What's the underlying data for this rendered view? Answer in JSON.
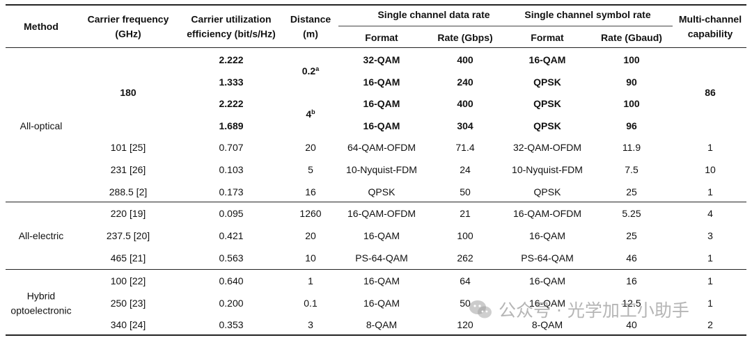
{
  "header": {
    "method": "Method",
    "carrier_freq": [
      "Carrier frequency",
      "(GHz)"
    ],
    "utilization": [
      "Carrier utilization",
      "efficiency (bit/s/Hz)"
    ],
    "distance": [
      "Distance",
      "(m)"
    ],
    "data_rate_group": "Single channel data rate",
    "symbol_rate_group": "Single channel symbol rate",
    "multichannel": [
      "Multi-channel",
      "capability"
    ],
    "format": "Format",
    "rate_gbps": "Rate (Gbps)",
    "rate_gbaud": "Rate (Gbaud)"
  },
  "groups": {
    "optical": "All-optical",
    "electric": "All-electric",
    "hybrid": [
      "Hybrid",
      "optoelectronic"
    ]
  },
  "optical_bold": {
    "freq": "180",
    "dist_a": "0.2",
    "dist_a_sup": "a",
    "dist_b": "4",
    "dist_b_sup": "b",
    "multichannel": "86",
    "rows": [
      {
        "eff": "2.222",
        "dfmt": "32-QAM",
        "drate": "400",
        "sfmt": "16-QAM",
        "srate": "100"
      },
      {
        "eff": "1.333",
        "dfmt": "16-QAM",
        "drate": "240",
        "sfmt": "QPSK",
        "srate": "90"
      },
      {
        "eff": "2.222",
        "dfmt": "16-QAM",
        "drate": "400",
        "sfmt": "QPSK",
        "srate": "100"
      },
      {
        "eff": "1.689",
        "dfmt": "16-QAM",
        "drate": "304",
        "sfmt": "QPSK",
        "srate": "96"
      }
    ]
  },
  "optical_rows": [
    {
      "freq": "101 [25]",
      "eff": "0.707",
      "dist": "20",
      "dfmt": "64-QAM-OFDM",
      "drate": "71.4",
      "sfmt": "32-QAM-OFDM",
      "srate": "11.9",
      "mc": "1"
    },
    {
      "freq": "231 [26]",
      "eff": "0.103",
      "dist": "5",
      "dfmt": "10-Nyquist-FDM",
      "drate": "24",
      "sfmt": "10-Nyquist-FDM",
      "srate": "7.5",
      "mc": "10"
    },
    {
      "freq": "288.5 [2]",
      "eff": "0.173",
      "dist": "16",
      "dfmt": "QPSK",
      "drate": "50",
      "sfmt": "QPSK",
      "srate": "25",
      "mc": "1"
    }
  ],
  "electric_rows": [
    {
      "freq": "220 [19]",
      "eff": "0.095",
      "dist": "1260",
      "dfmt": "16-QAM-OFDM",
      "drate": "21",
      "sfmt": "16-QAM-OFDM",
      "srate": "5.25",
      "mc": "4"
    },
    {
      "freq": "237.5 [20]",
      "eff": "0.421",
      "dist": "20",
      "dfmt": "16-QAM",
      "drate": "100",
      "sfmt": "16-QAM",
      "srate": "25",
      "mc": "3"
    },
    {
      "freq": "465 [21]",
      "eff": "0.563",
      "dist": "10",
      "dfmt": "PS-64-QAM",
      "drate": "262",
      "sfmt": "PS-64-QAM",
      "srate": "46",
      "mc": "1"
    }
  ],
  "hybrid_rows": [
    {
      "freq": "100 [22]",
      "eff": "0.640",
      "dist": "1",
      "dfmt": "16-QAM",
      "drate": "64",
      "sfmt": "16-QAM",
      "srate": "16",
      "mc": "1"
    },
    {
      "freq": "250 [23]",
      "eff": "0.200",
      "dist": "0.1",
      "dfmt": "16-QAM",
      "drate": "50",
      "sfmt": "16-QAM",
      "srate": "12.5",
      "mc": "1"
    },
    {
      "freq": "340 [24]",
      "eff": "0.353",
      "dist": "3",
      "dfmt": "8-QAM",
      "drate": "120",
      "sfmt": "8-QAM",
      "srate": "40",
      "mc": "2"
    }
  ],
  "watermark": "公众号 · 光学加工小助手"
}
